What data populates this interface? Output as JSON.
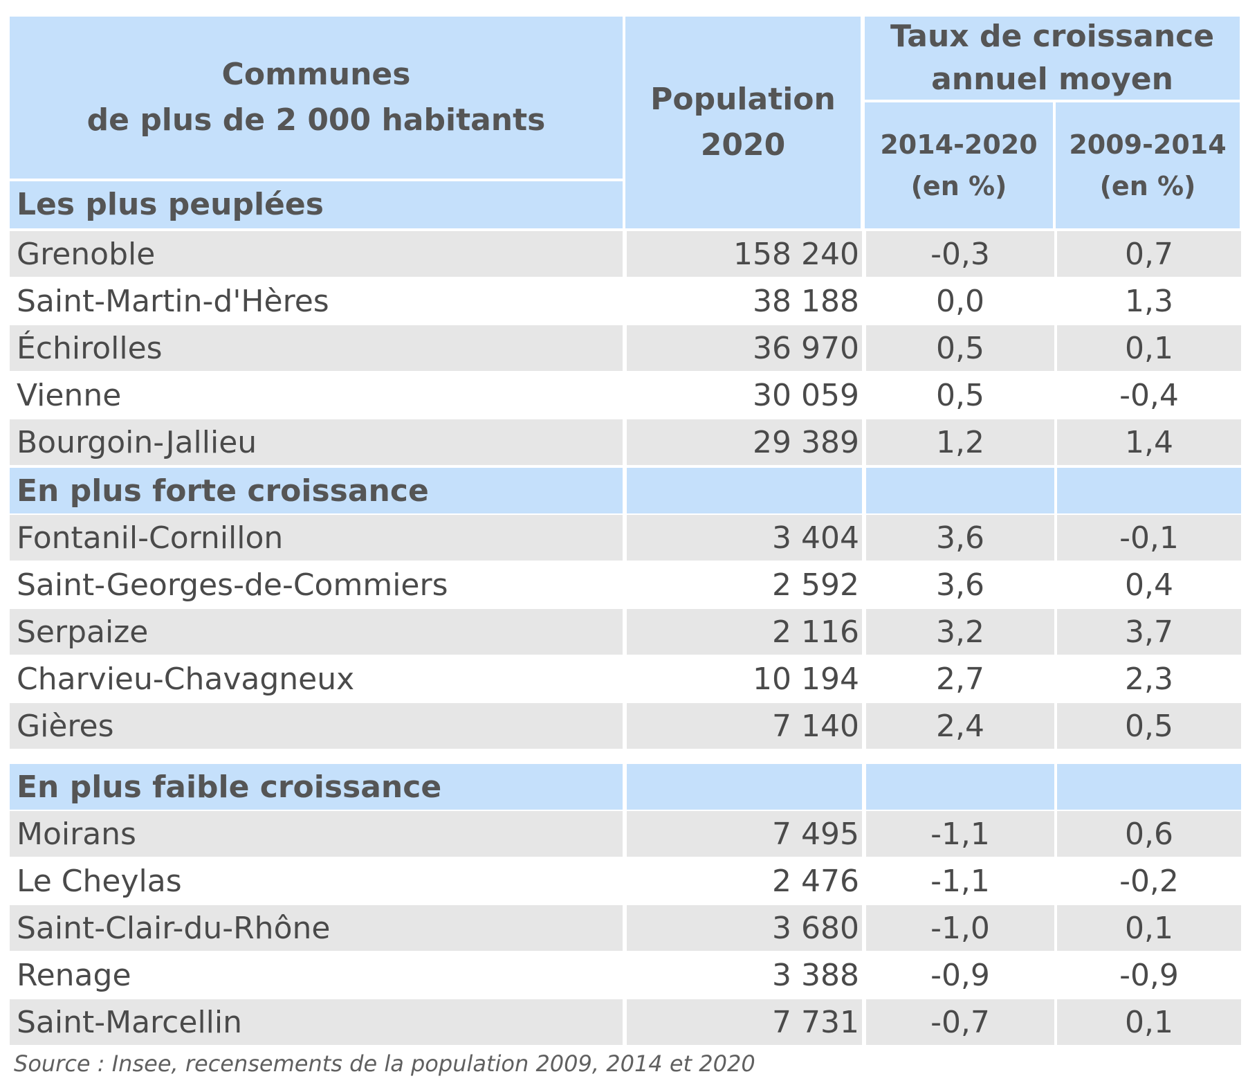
{
  "chart_data": {
    "type": "table",
    "header": {
      "communes_line1": "Communes",
      "communes_line2": "de plus de 2 000 habitants",
      "population_line1": "Population",
      "population_line2": "2020",
      "rate_group_line1": "Taux de croissance",
      "rate_group_line2": "annuel moyen",
      "rate_a_line1": "2014-2020",
      "rate_a_line2": "(en %)",
      "rate_b_line1": "2009-2014",
      "rate_b_line2": "(en %)"
    },
    "sections": [
      {
        "title": "Les plus peuplées",
        "rows": [
          {
            "name": "Grenoble",
            "pop": "158 240",
            "r1": "-0,3",
            "r2": "0,7"
          },
          {
            "name": "Saint-Martin-d'Hères",
            "pop": "38 188",
            "r1": "0,0",
            "r2": "1,3"
          },
          {
            "name": "Échirolles",
            "pop": "36 970",
            "r1": "0,5",
            "r2": "0,1"
          },
          {
            "name": "Vienne",
            "pop": "30 059",
            "r1": "0,5",
            "r2": "-0,4"
          },
          {
            "name": "Bourgoin-Jallieu",
            "pop": "29 389",
            "r1": "1,2",
            "r2": "1,4"
          }
        ]
      },
      {
        "title": "En plus forte croissance",
        "rows": [
          {
            "name": "Fontanil-Cornillon",
            "pop": "3 404",
            "r1": "3,6",
            "r2": "-0,1"
          },
          {
            "name": "Saint-Georges-de-Commiers",
            "pop": "2 592",
            "r1": "3,6",
            "r2": "0,4"
          },
          {
            "name": "Serpaize",
            "pop": "2 116",
            "r1": "3,2",
            "r2": "3,7"
          },
          {
            "name": "Charvieu-Chavagneux",
            "pop": "10 194",
            "r1": "2,7",
            "r2": "2,3"
          },
          {
            "name": "Gières",
            "pop": "7 140",
            "r1": "2,4",
            "r2": "0,5"
          }
        ]
      },
      {
        "title": "En plus faible croissance",
        "rows": [
          {
            "name": "Moirans",
            "pop": "7 495",
            "r1": "-1,1",
            "r2": "0,6"
          },
          {
            "name": "Le Cheylas",
            "pop": "2 476",
            "r1": "-1,1",
            "r2": "-0,2"
          },
          {
            "name": "Saint-Clair-du-Rhône",
            "pop": "3 680",
            "r1": "-1,0",
            "r2": "0,1"
          },
          {
            "name": "Renage",
            "pop": "3 388",
            "r1": "-0,9",
            "r2": "-0,9"
          },
          {
            "name": "Saint-Marcellin",
            "pop": "7 731",
            "r1": "-0,7",
            "r2": "0,1"
          }
        ]
      }
    ],
    "source": "Source : Insee, recensements de la population 2009, 2014 et 2020"
  },
  "colors": {
    "header_bg": "#c5e0fb",
    "row_grey": "#e6e6e6",
    "row_white": "#ffffff",
    "text": "#4a4a4a"
  }
}
